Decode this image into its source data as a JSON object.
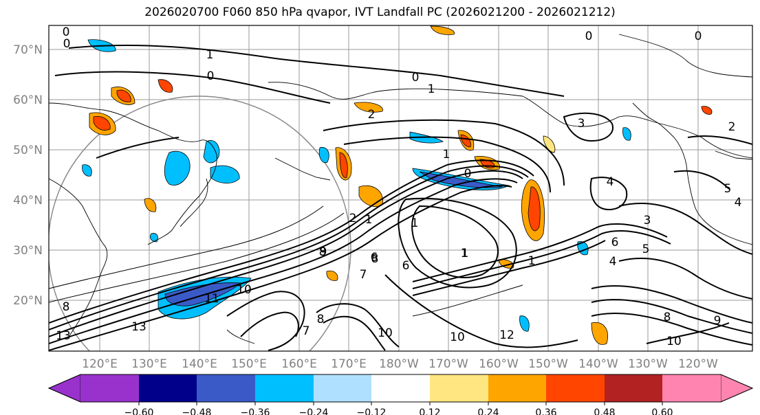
{
  "title": "2026020700 F060 850 hPa qvapor, IVT Landfall PC (2026021200 - 2026021212)",
  "latitude_labels": [
    "70°N",
    "60°N",
    "50°N",
    "40°N",
    "30°N",
    "20°N"
  ],
  "longitude_labels": [
    "120°E",
    "130°E",
    "140°E",
    "150°E",
    "160°E",
    "170°E",
    "180°W",
    "170°W",
    "160°W",
    "150°W",
    "140°W",
    "130°W",
    "120°W"
  ],
  "colorbar": {
    "colors": [
      "#9932CC",
      "#00008B",
      "#3A5BC7",
      "#00BFFF",
      "#B0E0FF",
      "#FFFFFF",
      "#FFE680",
      "#FFA500",
      "#FF4500",
      "#B22222",
      "#FF85B0"
    ],
    "tick_labels": [
      "−0.60",
      "−0.48",
      "−0.36",
      "−0.24",
      "−0.12",
      "0.12",
      "0.24",
      "0.36",
      "0.48",
      "0.60"
    ]
  },
  "contour_labels": [
    "0",
    "0",
    "1",
    "0",
    "0",
    "1",
    "2",
    "3",
    "1",
    "0",
    "2",
    "1",
    "7",
    "1",
    "6",
    "8",
    "10",
    "11",
    "13",
    "13",
    "8",
    "7",
    "10",
    "10",
    "12",
    "8",
    "10",
    "8",
    "4",
    "3",
    "5",
    "4",
    "5",
    "2",
    "4",
    "6",
    "1",
    "0",
    "0",
    "9",
    "1",
    "9",
    "1",
    "6",
    "8"
  ]
}
